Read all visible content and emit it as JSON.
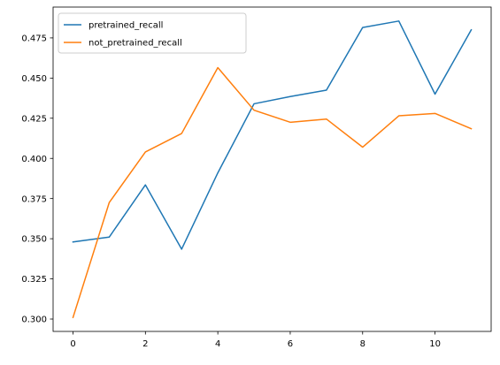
{
  "chart_data": {
    "type": "line",
    "title": "",
    "xlabel": "",
    "ylabel": "",
    "x": [
      0,
      1,
      2,
      3,
      4,
      5,
      6,
      7,
      8,
      9,
      10,
      11
    ],
    "xlim": [
      -0.55,
      11.55
    ],
    "ylim": [
      0.2923,
      0.4942
    ],
    "xticks": [
      0,
      2,
      4,
      6,
      8,
      10
    ],
    "xtick_labels": [
      "0",
      "2",
      "4",
      "6",
      "8",
      "10"
    ],
    "yticks": [
      0.3,
      0.325,
      0.35,
      0.375,
      0.4,
      0.425,
      0.45,
      0.475
    ],
    "ytick_labels": [
      "0.300",
      "0.325",
      "0.350",
      "0.375",
      "0.400",
      "0.425",
      "0.450",
      "0.475"
    ],
    "grid": false,
    "legend_position": "top-left",
    "series": [
      {
        "name": "pretrained_recall",
        "color": "#1f77b4",
        "values": [
          0.348,
          0.351,
          0.3835,
          0.3435,
          0.391,
          0.434,
          0.4385,
          0.4425,
          0.4815,
          0.4855,
          0.44,
          0.48
        ]
      },
      {
        "name": "not_pretrained_recall",
        "color": "#ff7f0e",
        "values": [
          0.301,
          0.3725,
          0.404,
          0.4155,
          0.4565,
          0.43,
          0.4225,
          0.4245,
          0.407,
          0.4265,
          0.428,
          0.4185
        ]
      }
    ]
  }
}
